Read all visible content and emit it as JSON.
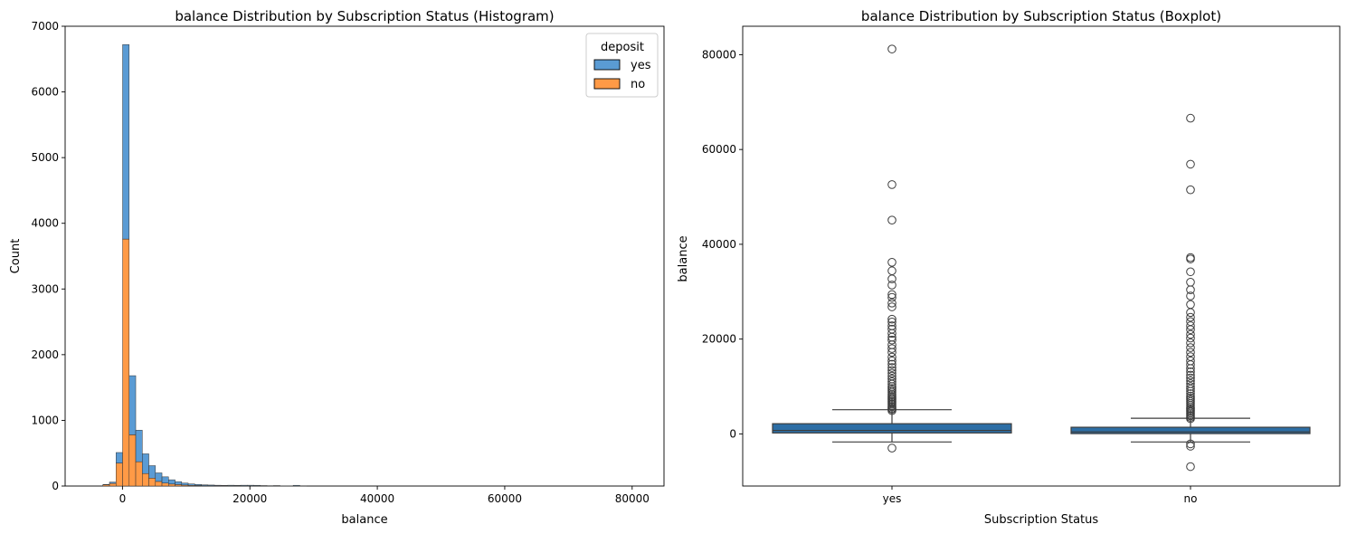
{
  "chart_data": [
    {
      "type": "histogram",
      "stacked": true,
      "title": "balance Distribution by Subscription Status (Histogram)",
      "xlabel": "balance",
      "ylabel": "Count",
      "xlim": [
        -9000,
        85000
      ],
      "ylim": [
        0,
        7000
      ],
      "xticks": [
        0,
        20000,
        40000,
        60000,
        80000
      ],
      "yticks": [
        0,
        1000,
        2000,
        3000,
        4000,
        5000,
        6000,
        7000
      ],
      "legend": {
        "title": "deposit",
        "placement": "top-right"
      },
      "bin_width": 1030,
      "bins_start": [
        -3070,
        -2040,
        -1010,
        20,
        1050,
        2080,
        3110,
        4140,
        5170,
        6200,
        7230,
        8260,
        9290,
        10320,
        11350,
        12380,
        13410,
        14440,
        15470,
        16500,
        17530,
        18560,
        19590,
        20620,
        21650,
        22680,
        23710,
        24740,
        25770,
        26800,
        27830
      ],
      "series": [
        {
          "name": "no",
          "color": "#ff9a46",
          "values": [
            20,
            40,
            350,
            3760,
            780,
            370,
            190,
            120,
            70,
            45,
            30,
            22,
            15,
            10,
            8,
            6,
            5,
            4,
            3,
            3,
            3,
            2,
            2,
            2,
            2,
            1,
            1,
            1,
            1,
            1,
            1
          ]
        },
        {
          "name": "yes",
          "color": "#5a9bd4",
          "values": [
            5,
            20,
            160,
            2960,
            900,
            480,
            300,
            190,
            130,
            95,
            65,
            45,
            30,
            22,
            16,
            12,
            10,
            8,
            7,
            9,
            8,
            10,
            10,
            9,
            5,
            4,
            6,
            2,
            2,
            10,
            3
          ]
        }
      ]
    },
    {
      "type": "boxplot",
      "title": "balance Distribution by Subscription Status (Boxplot)",
      "xlabel": "Subscription Status",
      "ylabel": "balance",
      "ylim": [
        -11000,
        86000
      ],
      "yticks": [
        0,
        20000,
        40000,
        60000,
        80000
      ],
      "box_color": "#2d6ea5",
      "categories": [
        "yes",
        "no"
      ],
      "boxes": [
        {
          "category": "yes",
          "whisker_low": -1700,
          "q1": 200,
          "median": 730,
          "q3": 2150,
          "whisker_high": 5100,
          "outliers": [
            -3000,
            4900,
            5200,
            5400,
            5700,
            6000,
            6300,
            6600,
            6900,
            7200,
            7500,
            7800,
            8100,
            8400,
            8800,
            9200,
            9600,
            10000,
            10500,
            11000,
            11600,
            12200,
            12800,
            13400,
            14000,
            14700,
            15400,
            16200,
            17200,
            18000,
            18800,
            19800,
            20400,
            21200,
            22100,
            22800,
            23600,
            24200,
            26800,
            27600,
            28800,
            29400,
            31400,
            32700,
            34400,
            36200,
            45100,
            52600,
            81200
          ]
        },
        {
          "category": "no",
          "whisker_low": -1700,
          "q1": 60,
          "median": 420,
          "q3": 1400,
          "whisker_high": 3300,
          "outliers": [
            -2100,
            -2600,
            -6900,
            3200,
            3500,
            3800,
            4100,
            4400,
            4700,
            5000,
            5300,
            5600,
            6000,
            6400,
            6800,
            7200,
            7600,
            8000,
            8500,
            9000,
            9500,
            10000,
            10600,
            11200,
            11800,
            12400,
            13100,
            13800,
            14600,
            15400,
            16300,
            17200,
            18200,
            19200,
            20200,
            21000,
            22000,
            22800,
            23700,
            24600,
            25600,
            27300,
            29100,
            30400,
            32000,
            34200,
            36900,
            37200,
            51500,
            56900,
            66600
          ]
        }
      ]
    }
  ]
}
